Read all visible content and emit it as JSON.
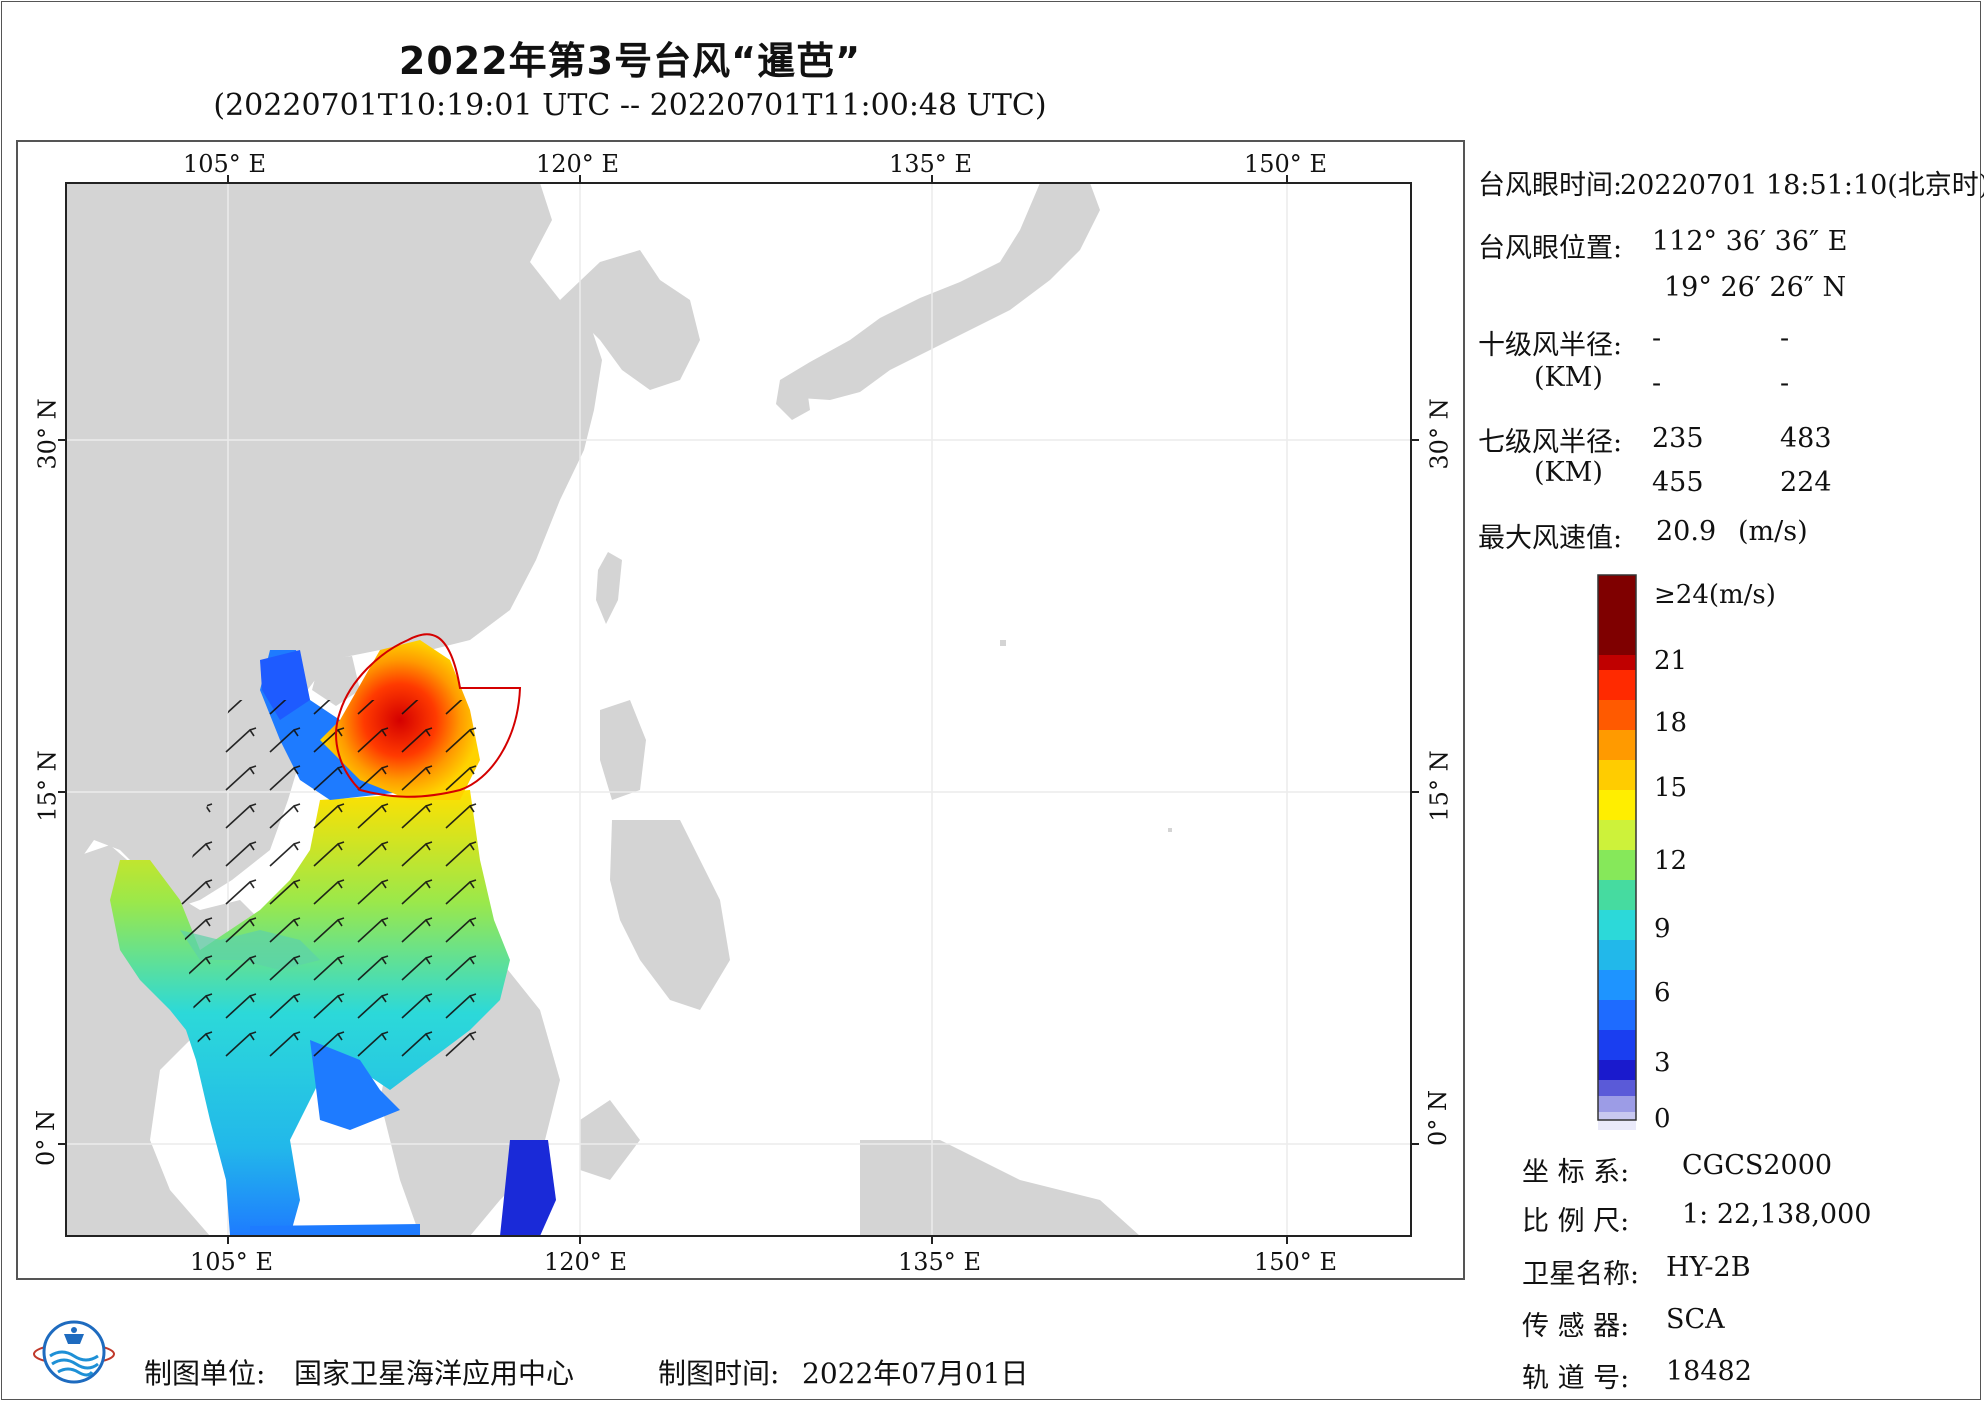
{
  "title": "2022年第3号台风“暹芭”",
  "subtitle": "(20220701T10:19:01 UTC -- 20220701T11:00:48 UTC)",
  "lon_ticks_top": [
    "105° E",
    "120° E",
    "135° E",
    "150° E"
  ],
  "lon_ticks_bottom": [
    "105° E",
    "120° E",
    "135° E",
    "150° E"
  ],
  "lat_ticks": [
    "30° N",
    "15° N",
    "0° N"
  ],
  "info": {
    "eye_time_label": "台风眼时间:",
    "eye_time_value": "20220701 18:51:10(北京时)",
    "eye_pos_label": "台风眼位置:",
    "eye_lon": "112° 36′ 36″ E",
    "eye_lat": "19° 26′ 26″ N",
    "r10_label": "十级风半径:",
    "r10_unit": "(KM)",
    "r10_values": [
      "-",
      "-",
      "-",
      "-"
    ],
    "r7_label": "七级风半径:",
    "r7_unit": "(KM)",
    "r7_values": [
      "235",
      "483",
      "455",
      "224"
    ],
    "max_wind_label": "最大风速值:",
    "max_wind_value": "20.9",
    "max_wind_unit": "(m/s)"
  },
  "colorbar": {
    "labels": [
      "≥24(m/s)",
      "21",
      "18",
      "15",
      "12",
      "9",
      "6",
      "3",
      "0"
    ],
    "colors": [
      "#7f0000",
      "#ff2a00",
      "#ff8c00",
      "#ffe600",
      "#9be84a",
      "#2cd9d9",
      "#1e7bff",
      "#1a1acd",
      "#ffffff"
    ]
  },
  "meta": {
    "crs_label": "坐 标 系:",
    "crs_value": "CGCS2000",
    "scale_label": "比 例 尺:",
    "scale_value": "1: 22,138,000",
    "satellite_label": "卫星名称:",
    "satellite_value": "HY-2B",
    "sensor_label": "传 感 器:",
    "sensor_value": "SCA",
    "orbit_label": "轨 道 号:",
    "orbit_value": "18482"
  },
  "footer": {
    "producer_label": "制图单位:",
    "producer_value": "国家卫星海洋应用中心",
    "date_label": "制图时间:",
    "date_value": "2022年07月01日"
  }
}
